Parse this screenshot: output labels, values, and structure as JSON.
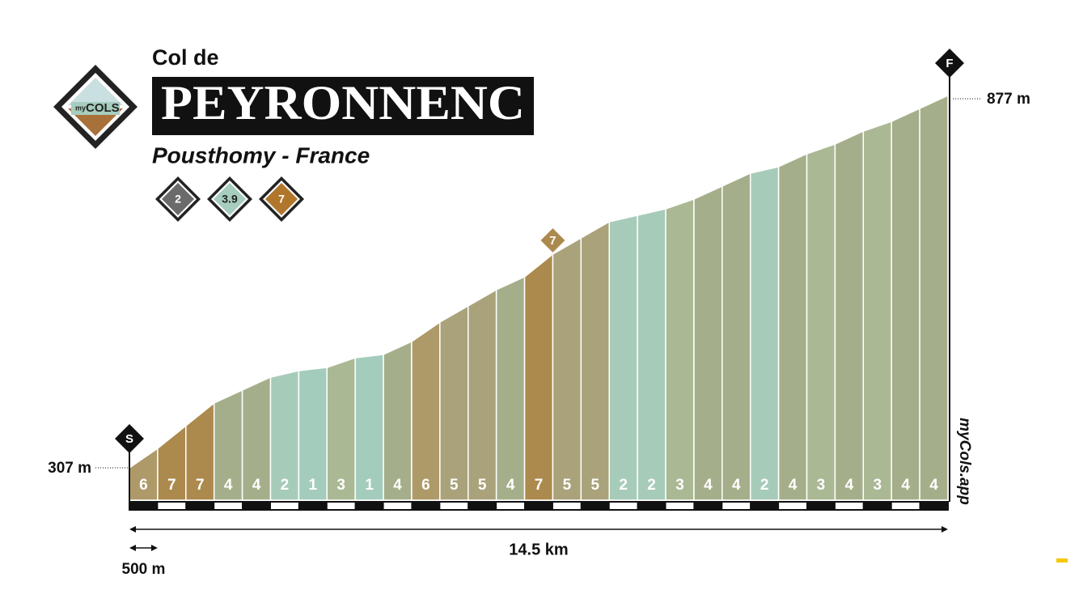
{
  "chart_data": {
    "type": "climb-profile",
    "prefix": "Col de",
    "title": "PEYRONNENC",
    "subtitle": "Pousthomy - France",
    "logo": {
      "small": "my",
      "big": "COLS"
    },
    "badges": [
      {
        "label": "2",
        "color": "#6b6b6b"
      },
      {
        "label": "3.9",
        "color": "#a6cdbd"
      },
      {
        "label": "7",
        "color": "#b0772c"
      }
    ],
    "start": {
      "marker": "S",
      "elevation": {
        "value": 307,
        "label": "307 m"
      }
    },
    "finish": {
      "marker": "F",
      "elevation": {
        "value": 877,
        "label": "877 m"
      }
    },
    "max_marker": "7",
    "segment_length": {
      "value": 500,
      "label": "500 m"
    },
    "distance_label": "14.5 km",
    "values": [
      6,
      7,
      7,
      4,
      4,
      2,
      1,
      3,
      1,
      4,
      6,
      5,
      5,
      4,
      7,
      5,
      5,
      2,
      2,
      3,
      4,
      4,
      2,
      4,
      3,
      4,
      3,
      4,
      4
    ],
    "gradient_colors": {
      "1": "#a4ccbd",
      "2": "#a7cbb9",
      "3": "#abb894",
      "4": "#a5ae8a",
      "5": "#aaa27a",
      "6": "#ae9a68",
      "7": "#ac8a4d"
    },
    "watermark": "myCols.app"
  }
}
